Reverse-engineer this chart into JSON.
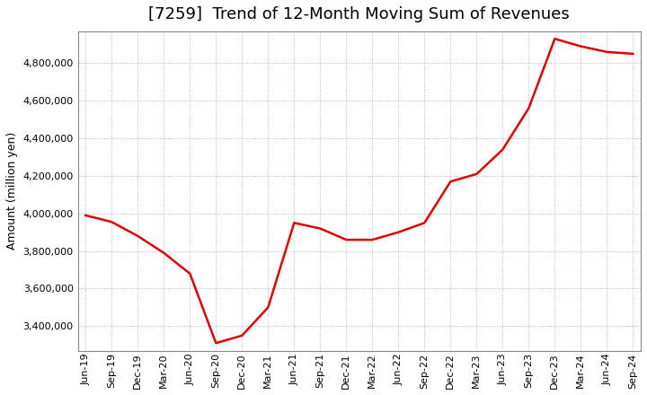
{
  "title": "[7259]  Trend of 12-Month Moving Sum of Revenues",
  "ylabel": "Amount (million yen)",
  "line_color": "#dd0000",
  "background_color": "#ffffff",
  "plot_bg_color": "#ffffff",
  "grid_color": "#aaaaaa",
  "x_labels": [
    "Jun-19",
    "Sep-19",
    "Dec-19",
    "Mar-20",
    "Jun-20",
    "Sep-20",
    "Dec-20",
    "Mar-21",
    "Jun-21",
    "Sep-21",
    "Dec-21",
    "Mar-22",
    "Jun-22",
    "Sep-22",
    "Dec-22",
    "Mar-23",
    "Jun-23",
    "Sep-23",
    "Dec-23",
    "Mar-24",
    "Jun-24",
    "Sep-24"
  ],
  "values": [
    3990000,
    3955000,
    3880000,
    3790000,
    3680000,
    3310000,
    3350000,
    3500000,
    3950000,
    3920000,
    3860000,
    3860000,
    3900000,
    3950000,
    4170000,
    4210000,
    4340000,
    4560000,
    4930000,
    4890000,
    4860000,
    4850000
  ],
  "ylim_min": 3270000,
  "ylim_max": 4970000,
  "yticks": [
    3400000,
    3600000,
    3800000,
    4000000,
    4200000,
    4400000,
    4600000,
    4800000
  ],
  "title_fontsize": 13,
  "ylabel_fontsize": 9,
  "tick_fontsize": 8
}
